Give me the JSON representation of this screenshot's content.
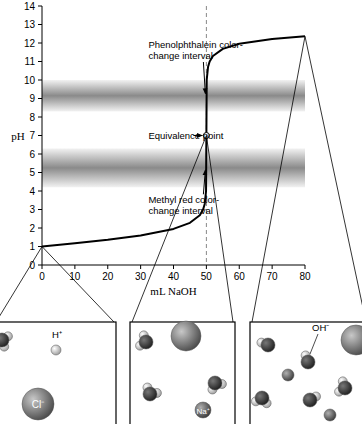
{
  "chart_data": {
    "type": "line",
    "x_label": "mL NaOH",
    "y_label": "pH",
    "x": [
      0,
      10,
      20,
      30,
      40,
      45,
      48,
      49,
      49.5,
      49.9,
      50,
      50.1,
      50.5,
      51,
      52,
      55,
      60,
      70,
      80
    ],
    "values": [
      1.0,
      1.18,
      1.37,
      1.6,
      1.95,
      2.28,
      2.69,
      3.0,
      3.3,
      4.0,
      7.0,
      10.0,
      10.7,
      11.0,
      11.3,
      11.68,
      11.96,
      12.22,
      12.36
    ],
    "color": "#000000",
    "xlim": [
      0,
      80
    ],
    "ylim": [
      0,
      14
    ],
    "xticks": [
      0,
      10,
      20,
      30,
      40,
      50,
      60,
      70,
      80
    ],
    "yticks": [
      0,
      1,
      2,
      3,
      4,
      5,
      6,
      7,
      8,
      9,
      10,
      11,
      12,
      13,
      14
    ],
    "bands": [
      {
        "label_lines": [
          "Phenolphthalein color-",
          "change interval"
        ],
        "range": [
          8.3,
          10.0
        ]
      },
      {
        "label_lines": [
          "Methyl red color-",
          "change interval"
        ],
        "range": [
          4.2,
          6.3
        ]
      }
    ],
    "equivalence_point": {
      "label": "Equivalence point",
      "x": 50,
      "y": 7
    },
    "panels": [
      {
        "ml": 0,
        "ion_labels": [
          "H⁺",
          "Cl⁻"
        ]
      },
      {
        "ml": 50,
        "ion_labels": [
          "Na⁺"
        ]
      },
      {
        "ml": 80,
        "ion_labels": [
          "OH⁻"
        ]
      }
    ]
  }
}
